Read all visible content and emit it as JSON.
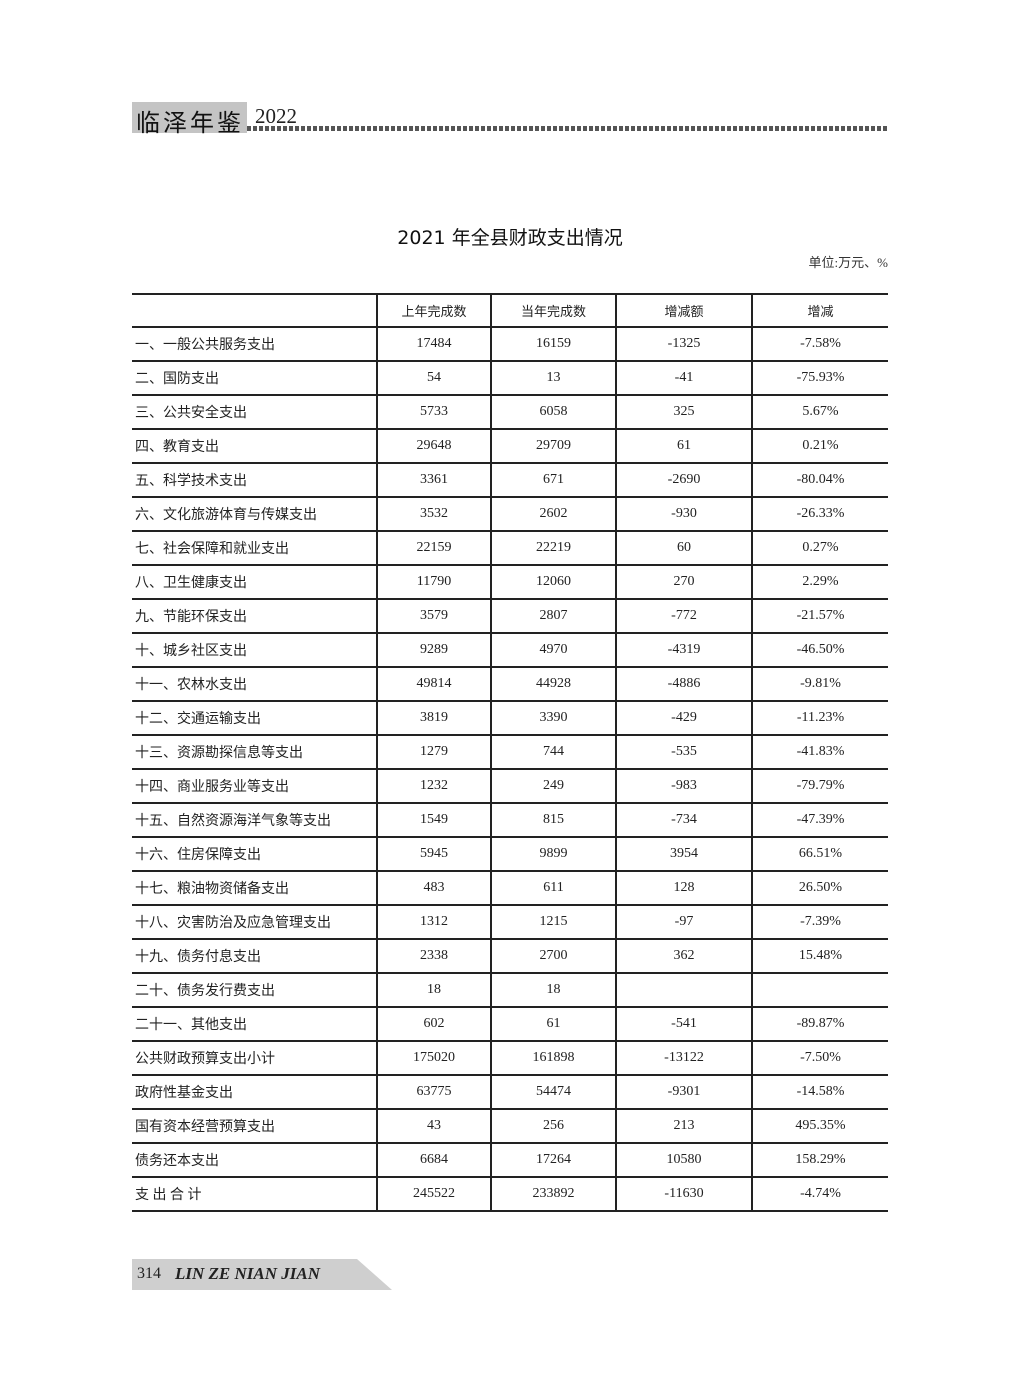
{
  "header": {
    "book_title": "临泽年鉴",
    "year": "2022"
  },
  "title": "2021 年全县财政支出情况",
  "unit": "单位:万元、%",
  "table": {
    "columns": [
      "",
      "上年完成数",
      "当年完成数",
      "增减额",
      "增减"
    ],
    "rows": [
      [
        "一、一般公共服务支出",
        "17484",
        "16159",
        "-1325",
        "-7.58%"
      ],
      [
        "二、国防支出",
        "54",
        "13",
        "-41",
        "-75.93%"
      ],
      [
        "三、公共安全支出",
        "5733",
        "6058",
        "325",
        "5.67%"
      ],
      [
        "四、教育支出",
        "29648",
        "29709",
        "61",
        "0.21%"
      ],
      [
        "五、科学技术支出",
        "3361",
        "671",
        "-2690",
        "-80.04%"
      ],
      [
        "六、文化旅游体育与传媒支出",
        "3532",
        "2602",
        "-930",
        "-26.33%"
      ],
      [
        "七、社会保障和就业支出",
        "22159",
        "22219",
        "60",
        "0.27%"
      ],
      [
        "八、卫生健康支出",
        "11790",
        "12060",
        "270",
        "2.29%"
      ],
      [
        "九、节能环保支出",
        "3579",
        "2807",
        "-772",
        "-21.57%"
      ],
      [
        "十、城乡社区支出",
        "9289",
        "4970",
        "-4319",
        "-46.50%"
      ],
      [
        "十一、农林水支出",
        "49814",
        "44928",
        "-4886",
        "-9.81%"
      ],
      [
        "十二、交通运输支出",
        "3819",
        "3390",
        "-429",
        "-11.23%"
      ],
      [
        "十三、资源勘探信息等支出",
        "1279",
        "744",
        "-535",
        "-41.83%"
      ],
      [
        "十四、商业服务业等支出",
        "1232",
        "249",
        "-983",
        "-79.79%"
      ],
      [
        "十五、自然资源海洋气象等支出",
        "1549",
        "815",
        "-734",
        "-47.39%"
      ],
      [
        "十六、住房保障支出",
        "5945",
        "9899",
        "3954",
        "66.51%"
      ],
      [
        "十七、粮油物资储备支出",
        "483",
        "611",
        "128",
        "26.50%"
      ],
      [
        "十八、灾害防治及应急管理支出",
        "1312",
        "1215",
        "-97",
        "-7.39%"
      ],
      [
        "十九、债务付息支出",
        "2338",
        "2700",
        "362",
        "15.48%"
      ],
      [
        "二十、债务发行费支出",
        "18",
        "18",
        "",
        ""
      ],
      [
        "二十一、其他支出",
        "602",
        "61",
        "-541",
        "-89.87%"
      ],
      [
        "公共财政预算支出小计",
        "175020",
        "161898",
        "-13122",
        "-7.50%"
      ],
      [
        "政府性基金支出",
        "63775",
        "54474",
        "-9301",
        "-14.58%"
      ],
      [
        "国有资本经营预算支出",
        "43",
        "256",
        "213",
        "495.35%"
      ],
      [
        "债务还本支出",
        "6684",
        "17264",
        "10580",
        "158.29%"
      ],
      [
        "支 出 合 计",
        "245522",
        "233892",
        "-11630",
        "-4.74%"
      ]
    ]
  },
  "footer": {
    "page_number": "314",
    "book_title_pinyin": "LIN ZE NIAN JIAN"
  }
}
